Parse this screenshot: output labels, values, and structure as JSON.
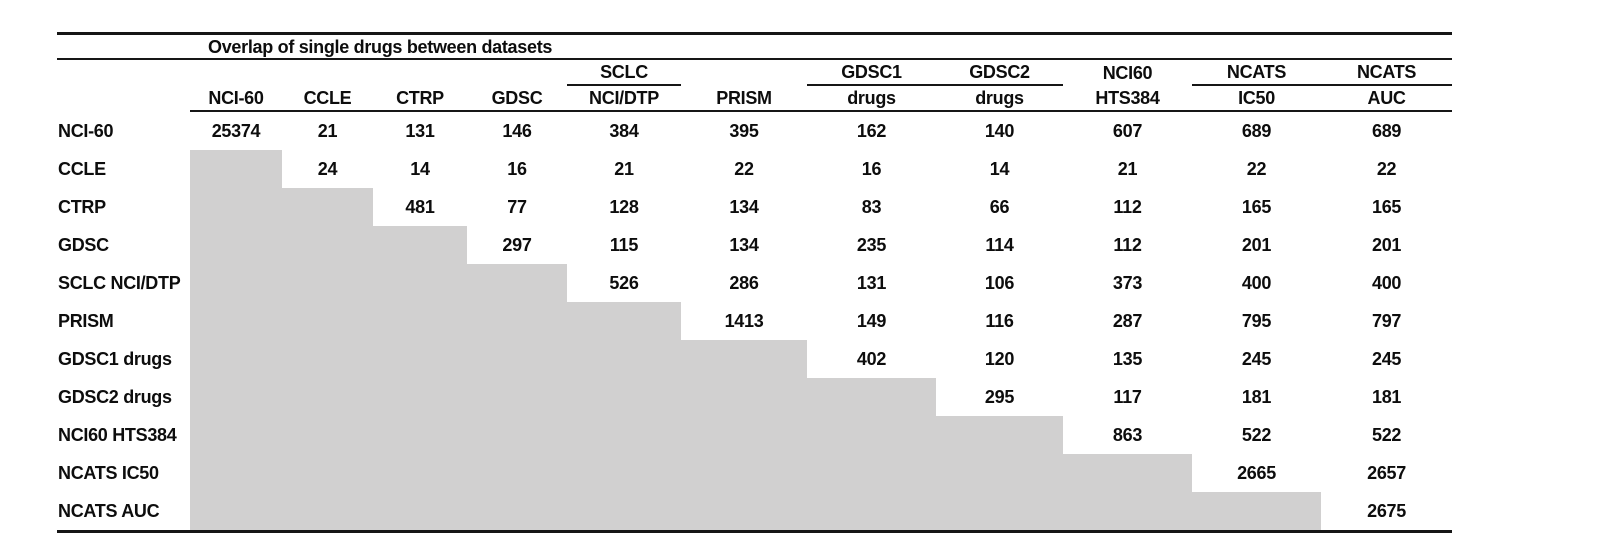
{
  "table": {
    "title": "Overlap of single drugs between datasets",
    "columns": [
      {
        "top": "",
        "bottom": "NCI-60",
        "group_rule": false
      },
      {
        "top": "",
        "bottom": "CCLE",
        "group_rule": false
      },
      {
        "top": "",
        "bottom": "CTRP",
        "group_rule": false
      },
      {
        "top": "",
        "bottom": "GDSC",
        "group_rule": false
      },
      {
        "top": "SCLC",
        "bottom": "NCI/DTP",
        "group_rule": true
      },
      {
        "top": "",
        "bottom": "PRISM",
        "group_rule": false
      },
      {
        "top": "GDSC1",
        "bottom": "drugs",
        "group_rule": true
      },
      {
        "top": "GDSC2",
        "bottom": "drugs",
        "group_rule": true
      },
      {
        "top": "NCI60",
        "bottom": "HTS384",
        "group_rule": false
      },
      {
        "top": "NCATS",
        "bottom": "IC50",
        "group_rule": true
      },
      {
        "top": "NCATS",
        "bottom": "AUC",
        "group_rule": true
      }
    ],
    "rows": [
      {
        "label": "NCI-60",
        "values": [
          "25374",
          "21",
          "131",
          "146",
          "384",
          "395",
          "162",
          "140",
          "607",
          "689",
          "689"
        ]
      },
      {
        "label": "CCLE",
        "values": [
          null,
          "24",
          "14",
          "16",
          "21",
          "22",
          "16",
          "14",
          "21",
          "22",
          "22"
        ]
      },
      {
        "label": "CTRP",
        "values": [
          null,
          null,
          "481",
          "77",
          "128",
          "134",
          "83",
          "66",
          "112",
          "165",
          "165"
        ]
      },
      {
        "label": "GDSC",
        "values": [
          null,
          null,
          null,
          "297",
          "115",
          "134",
          "235",
          "114",
          "112",
          "201",
          "201"
        ]
      },
      {
        "label": "SCLC NCI/DTP",
        "values": [
          null,
          null,
          null,
          null,
          "526",
          "286",
          "131",
          "106",
          "373",
          "400",
          "400"
        ]
      },
      {
        "label": "PRISM",
        "values": [
          null,
          null,
          null,
          null,
          null,
          "1413",
          "149",
          "116",
          "287",
          "795",
          "797"
        ]
      },
      {
        "label": "GDSC1 drugs",
        "values": [
          null,
          null,
          null,
          null,
          null,
          null,
          "402",
          "120",
          "135",
          "245",
          "245"
        ]
      },
      {
        "label": "GDSC2 drugs",
        "values": [
          null,
          null,
          null,
          null,
          null,
          null,
          null,
          "295",
          "117",
          "181",
          "181"
        ]
      },
      {
        "label": "NCI60 HTS384",
        "values": [
          null,
          null,
          null,
          null,
          null,
          null,
          null,
          null,
          "863",
          "522",
          "522"
        ]
      },
      {
        "label": "NCATS IC50",
        "values": [
          null,
          null,
          null,
          null,
          null,
          null,
          null,
          null,
          null,
          "2665",
          "2657"
        ]
      },
      {
        "label": "NCATS AUC",
        "values": [
          null,
          null,
          null,
          null,
          null,
          null,
          null,
          null,
          null,
          null,
          "2675"
        ]
      }
    ],
    "shaded_color": "#d1d0d0"
  }
}
